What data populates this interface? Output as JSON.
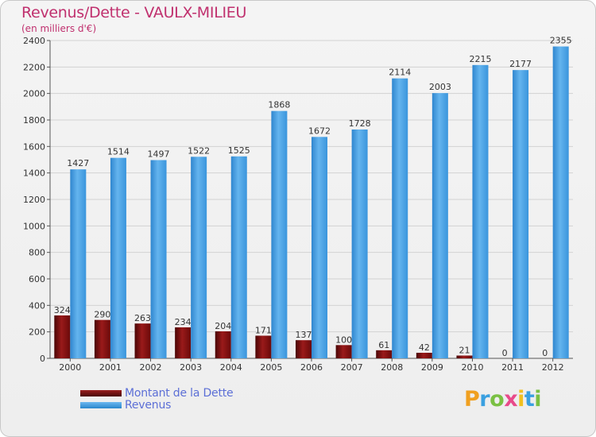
{
  "header": {
    "title": "Revenus/Dette - VAULX-MILIEU",
    "subtitle": "(en milliers d'€)"
  },
  "legend": {
    "items": [
      {
        "label": "Montant de la Dette",
        "color": "#7a0e0e"
      },
      {
        "label": "Revenus",
        "color": "#3d9de4"
      }
    ]
  },
  "logo": {
    "letters": [
      {
        "ch": "P",
        "color": "#f0a020"
      },
      {
        "ch": "r",
        "color": "#3aa0e0"
      },
      {
        "ch": "o",
        "color": "#7ac043"
      },
      {
        "ch": "x",
        "color": "#e84a8a"
      },
      {
        "ch": "i",
        "color": "#f0c020"
      },
      {
        "ch": "t",
        "color": "#3aa0e0"
      },
      {
        "ch": "i",
        "color": "#7ac043"
      }
    ]
  },
  "chart_data": {
    "type": "bar",
    "title": "Revenus/Dette - VAULX-MILIEU",
    "subtitle": "(en milliers d'€)",
    "categories": [
      "2000",
      "2001",
      "2002",
      "2003",
      "2004",
      "2005",
      "2006",
      "2007",
      "2008",
      "2009",
      "2010",
      "2011",
      "2012"
    ],
    "series": [
      {
        "name": "Montant de la Dette",
        "color": "#7a0e0e",
        "values": [
          324,
          290,
          263,
          234,
          204,
          171,
          137,
          100,
          61,
          42,
          21,
          0,
          0
        ]
      },
      {
        "name": "Revenus",
        "color": "#3d9de4",
        "values": [
          1427,
          1514,
          1497,
          1522,
          1525,
          1868,
          1672,
          1728,
          2114,
          2003,
          2215,
          2177,
          2355
        ]
      }
    ],
    "ylim": [
      0,
      2400
    ],
    "yticks": [
      0,
      200,
      400,
      600,
      800,
      1000,
      1200,
      1400,
      1600,
      1800,
      2000,
      2200,
      2400
    ],
    "grid": true,
    "legend_position": "bottom-left"
  }
}
